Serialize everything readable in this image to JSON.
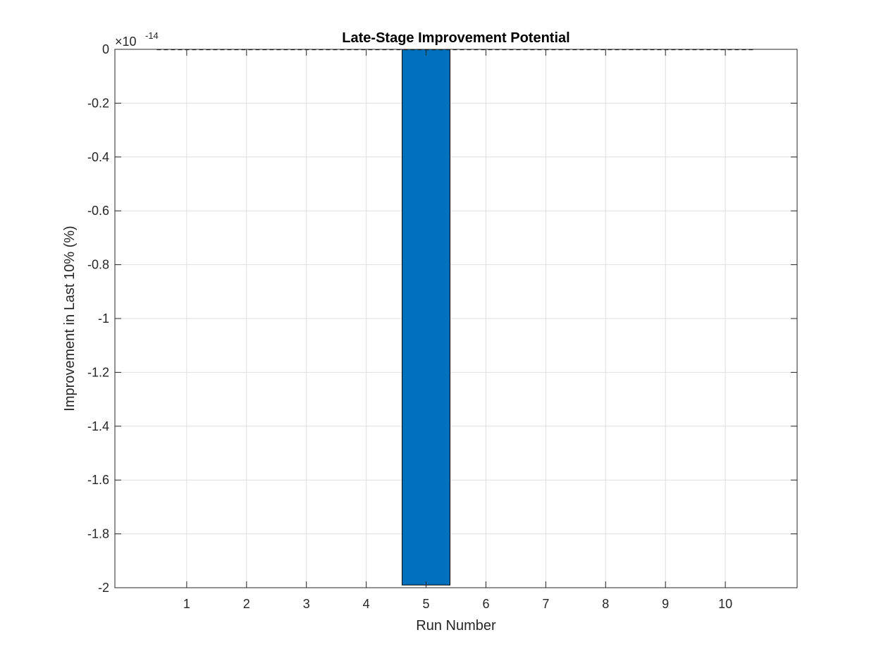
{
  "chart_data": {
    "type": "bar",
    "title": "Late-Stage Improvement Potential",
    "xlabel": "Run Number",
    "ylabel": "Improvement in Last 10% (%)",
    "x": [
      1,
      2,
      3,
      4,
      5,
      6,
      7,
      8,
      9,
      10
    ],
    "x_tick_labels": [
      "1",
      "2",
      "3",
      "4",
      "5",
      "6",
      "7",
      "8",
      "9",
      "10"
    ],
    "xlim": [
      -0.2,
      11.2
    ],
    "values": [
      0,
      0,
      0,
      0,
      -1.99e-14,
      0,
      0,
      0,
      0,
      0
    ],
    "ylim": [
      -2e-14,
      0
    ],
    "y_ticks": [
      0,
      -0.2,
      -0.4,
      -0.6,
      -0.8,
      -1,
      -1.2,
      -1.4,
      -1.6,
      -1.8,
      -2
    ],
    "y_tick_labels": [
      "0",
      "-0.2",
      "-0.4",
      "-0.6",
      "-0.8",
      "-1",
      "-1.2",
      "-1.4",
      "-1.6",
      "-1.8",
      "-2"
    ],
    "y_exponent_label": "×10",
    "y_exponent_power": "-14",
    "y_exponent_multiplier": 1e-14,
    "reference_line": {
      "y": 0,
      "x_range": [
        0.5,
        10.5
      ],
      "style": "dashed",
      "color": "#000000"
    },
    "bar_width": 0.8,
    "bar_color": "#0072BD",
    "grid": true,
    "legend": "none"
  }
}
